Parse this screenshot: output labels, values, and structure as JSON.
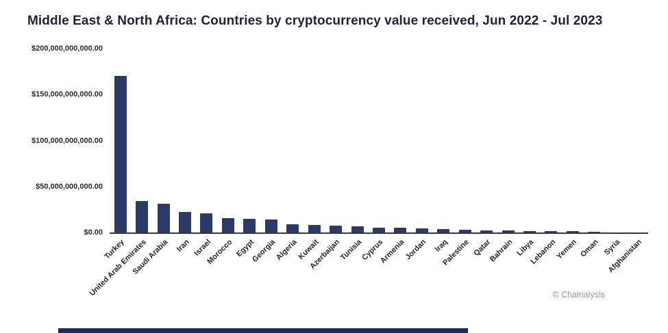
{
  "title": "Middle East & North Africa: Countries by cryptocurrency value received, Jun 2022 - Jul 2023",
  "watermark": "© Chainalysis",
  "colors": {
    "bar": "#2b3a67",
    "footer_bar": "#1f2a5a",
    "axis_line": "#33363d",
    "watermark_text": "#9b9b9b"
  },
  "chart_data": {
    "type": "bar",
    "title": "Middle East & North Africa: Countries by cryptocurrency value received, Jun 2022 - Jul 2023",
    "xlabel": "",
    "ylabel": "",
    "grid": false,
    "legend": false,
    "ylim": [
      0,
      200000000000
    ],
    "yticks": [
      0,
      50000000000,
      100000000000,
      150000000000,
      200000000000
    ],
    "ytick_labels": [
      "$0.00",
      "$50,000,000,000.00",
      "$100,000,000,000.00",
      "$150,000,000,000.00",
      "$200,000,000,000.00"
    ],
    "categories": [
      "Turkey",
      "United Arab Emirates",
      "Saudi Arabia",
      "Iran",
      "Israel",
      "Morocco",
      "Egypt",
      "Georgia",
      "Algeria",
      "Kuwait",
      "Azerbaijan",
      "Tunisia",
      "Cyprus",
      "Armenia",
      "Jordan",
      "Iraq",
      "Palestine",
      "Qatar",
      "Bahrain",
      "Libya",
      "Lebanon",
      "Yemen",
      "Oman",
      "Syria",
      "Afghanistan"
    ],
    "values": [
      170000000000,
      34500000000,
      31000000000,
      22500000000,
      20500000000,
      15800000000,
      15200000000,
      14500000000,
      8800000000,
      8200000000,
      7400000000,
      6600000000,
      5200000000,
      5100000000,
      4800000000,
      3700000000,
      3300000000,
      2600000000,
      2200000000,
      1800000000,
      1700000000,
      1500000000,
      1100000000,
      250000000,
      80000000
    ]
  }
}
